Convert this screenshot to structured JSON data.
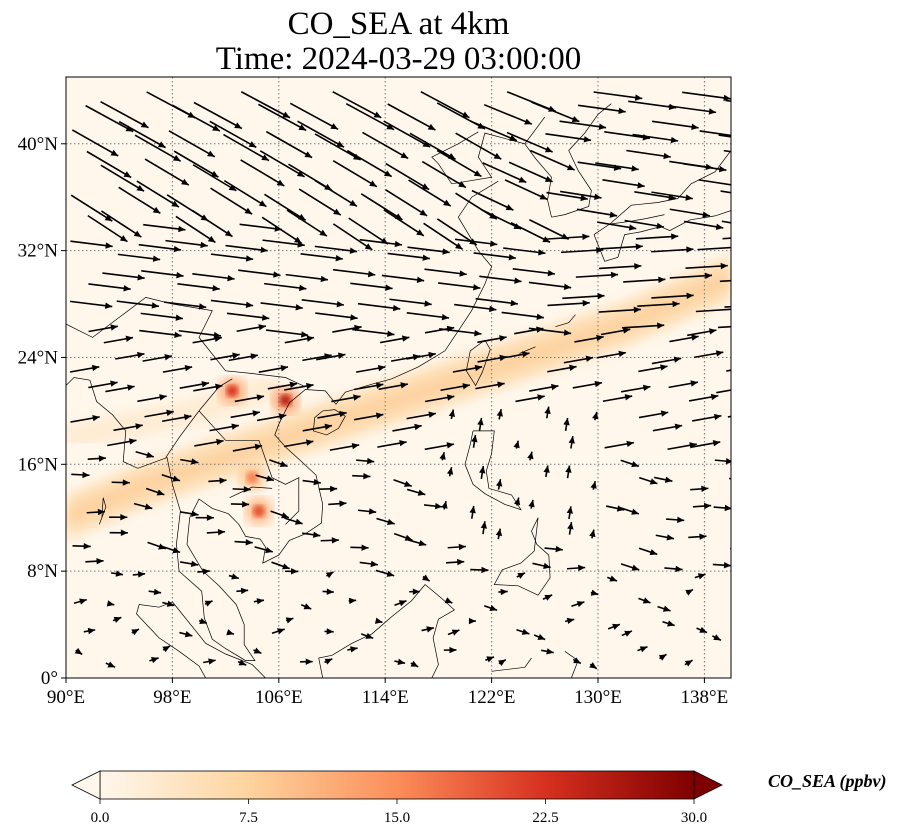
{
  "title": {
    "line1": "CO_SEA at 4km",
    "line2": "Time: 2024-03-29 03:00:00"
  },
  "map": {
    "type": "heatmap",
    "variable": "CO_SEA",
    "units": "ppbv",
    "height_level": "4km",
    "time": "2024-03-29 03:00:00",
    "extent": {
      "lon": [
        90,
        140
      ],
      "lat": [
        0,
        45
      ]
    },
    "lon_ticks": [
      90,
      98,
      106,
      114,
      122,
      130,
      138
    ],
    "lon_tick_labels": [
      "90°E",
      "98°E",
      "106°E",
      "114°E",
      "122°E",
      "130°E",
      "138°E"
    ],
    "lat_ticks": [
      0,
      8,
      16,
      24,
      32,
      40
    ],
    "lat_tick_labels": [
      "0°",
      "8°N",
      "16°N",
      "24°N",
      "32°N",
      "40°N"
    ],
    "gridlines": true,
    "coastlines": true,
    "wind_vectors": true,
    "colormap": "OrRd",
    "plume_band": [
      [
        90,
        12
      ],
      [
        96,
        14.5
      ],
      [
        102,
        16.5
      ],
      [
        108,
        18.5
      ],
      [
        114,
        20.5
      ],
      [
        120,
        22.5
      ],
      [
        126,
        24.5
      ],
      [
        132,
        26.5
      ],
      [
        140,
        30
      ]
    ],
    "hotspots": [
      {
        "lon": 102.5,
        "lat": 21.5,
        "value": 22
      },
      {
        "lon": 106.5,
        "lat": 20.8,
        "value": 25
      },
      {
        "lon": 104.5,
        "lat": 12.5,
        "value": 20
      },
      {
        "lon": 104.0,
        "lat": 15.0,
        "value": 16
      }
    ]
  },
  "colorbar": {
    "label": "CO_SEA (ppbv)",
    "min": 0.0,
    "max": 30.0,
    "ticks": [
      0.0,
      7.5,
      15.0,
      22.5,
      30.0
    ],
    "tick_labels": [
      "0.0",
      "7.5",
      "15.0",
      "22.5",
      "30.0"
    ],
    "extend": "both",
    "colors": [
      "#fff7ec",
      "#fdd49e",
      "#fc8d59",
      "#d7301f",
      "#7f0000"
    ]
  }
}
